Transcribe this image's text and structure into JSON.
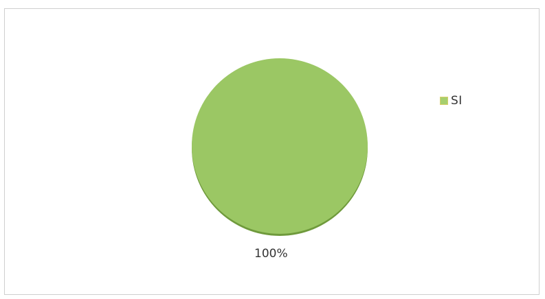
{
  "chart_data": {
    "type": "pie",
    "categories": [
      "SI"
    ],
    "values": [
      100
    ],
    "data_labels": [
      "100%"
    ],
    "legend": {
      "position": "right",
      "entries": [
        "SI"
      ]
    },
    "colors": {
      "slice": "#9bc764",
      "slice_shadow": "#6f9a3c",
      "legend_swatch": "#a6cf6e"
    }
  }
}
